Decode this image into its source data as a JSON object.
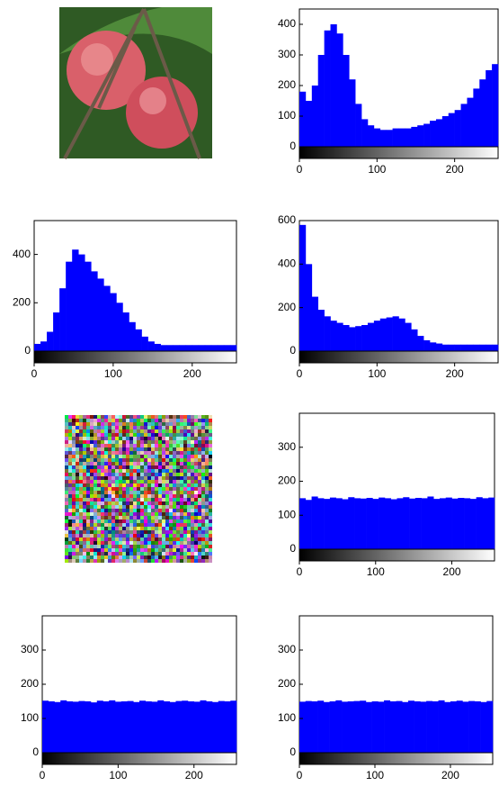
{
  "chart_data": [
    {
      "type": "histogram",
      "color": "#0000ff",
      "bins": [
        0,
        8,
        16,
        24,
        32,
        40,
        48,
        56,
        64,
        72,
        80,
        88,
        96,
        104,
        112,
        120,
        128,
        136,
        144,
        152,
        160,
        168,
        176,
        184,
        192,
        200,
        208,
        216,
        224,
        232,
        240,
        248,
        256
      ],
      "counts": [
        180,
        150,
        200,
        300,
        380,
        400,
        370,
        300,
        220,
        140,
        90,
        70,
        60,
        55,
        55,
        60,
        60,
        60,
        65,
        70,
        75,
        85,
        90,
        100,
        110,
        120,
        140,
        160,
        190,
        220,
        250,
        270
      ],
      "xlim": [
        0,
        256
      ],
      "xticks": [
        0,
        100,
        200
      ],
      "ylim": [
        0,
        450
      ],
      "yticks": [
        0,
        100,
        200,
        300,
        400
      ]
    },
    {
      "type": "histogram",
      "color": "#0000ff",
      "bins": [
        0,
        8,
        16,
        24,
        32,
        40,
        48,
        56,
        64,
        72,
        80,
        88,
        96,
        104,
        112,
        120,
        128,
        136,
        144,
        152,
        160,
        168,
        176,
        184,
        192,
        200,
        208,
        216,
        224,
        232,
        240,
        248,
        256
      ],
      "counts": [
        30,
        40,
        80,
        160,
        260,
        370,
        420,
        400,
        370,
        330,
        300,
        270,
        240,
        200,
        160,
        120,
        90,
        60,
        40,
        30,
        25,
        25,
        25,
        25,
        25,
        25,
        25,
        25,
        25,
        25,
        25,
        25
      ],
      "xlim": [
        0,
        256
      ],
      "xticks": [
        0,
        100,
        200
      ],
      "ylim": [
        0,
        540
      ],
      "yticks": [
        0,
        200,
        400
      ]
    },
    {
      "type": "histogram",
      "color": "#0000ff",
      "bins": [
        0,
        8,
        16,
        24,
        32,
        40,
        48,
        56,
        64,
        72,
        80,
        88,
        96,
        104,
        112,
        120,
        128,
        136,
        144,
        152,
        160,
        168,
        176,
        184,
        192,
        200,
        208,
        216,
        224,
        232,
        240,
        248,
        256
      ],
      "counts": [
        580,
        400,
        250,
        190,
        160,
        140,
        130,
        120,
        110,
        115,
        120,
        130,
        140,
        150,
        155,
        160,
        150,
        130,
        100,
        70,
        50,
        40,
        35,
        30,
        30,
        30,
        30,
        30,
        30,
        30,
        30,
        30
      ],
      "xlim": [
        0,
        256
      ],
      "xticks": [
        0,
        100,
        200
      ],
      "ylim": [
        0,
        600
      ],
      "yticks": [
        0,
        200,
        400,
        600
      ]
    },
    {
      "type": "histogram",
      "color": "#0000ff",
      "bins": [
        0,
        8,
        16,
        24,
        32,
        40,
        48,
        56,
        64,
        72,
        80,
        88,
        96,
        104,
        112,
        120,
        128,
        136,
        144,
        152,
        160,
        168,
        176,
        184,
        192,
        200,
        208,
        216,
        224,
        232,
        240,
        248,
        256
      ],
      "counts": [
        150,
        145,
        155,
        150,
        148,
        152,
        150,
        147,
        153,
        150,
        149,
        151,
        148,
        152,
        150,
        147,
        150,
        153,
        149,
        151,
        150,
        155,
        148,
        150,
        152,
        149,
        151,
        150,
        148,
        153,
        150,
        152
      ],
      "xlim": [
        0,
        256
      ],
      "xticks": [
        0,
        100,
        200
      ],
      "ylim": [
        0,
        400
      ],
      "yticks": [
        0,
        100,
        200,
        300
      ]
    },
    {
      "type": "histogram",
      "color": "#0000ff",
      "bins": [
        0,
        8,
        16,
        24,
        32,
        40,
        48,
        56,
        64,
        72,
        80,
        88,
        96,
        104,
        112,
        120,
        128,
        136,
        144,
        152,
        160,
        168,
        176,
        184,
        192,
        200,
        208,
        216,
        224,
        232,
        240,
        248,
        256
      ],
      "counts": [
        152,
        150,
        148,
        153,
        150,
        149,
        151,
        150,
        147,
        152,
        150,
        153,
        149,
        150,
        151,
        148,
        152,
        150,
        149,
        153,
        150,
        148,
        151,
        152,
        150,
        149,
        153,
        150,
        148,
        151,
        150,
        152
      ],
      "xlim": [
        0,
        256
      ],
      "xticks": [
        0,
        100,
        200
      ],
      "ylim": [
        0,
        400
      ],
      "yticks": [
        0,
        100,
        200,
        300
      ]
    },
    {
      "type": "histogram",
      "color": "#0000ff",
      "bins": [
        0,
        8,
        16,
        24,
        32,
        40,
        48,
        56,
        64,
        72,
        80,
        88,
        96,
        104,
        112,
        120,
        128,
        136,
        144,
        152,
        160,
        168,
        176,
        184,
        192,
        200,
        208,
        216,
        224,
        232,
        240,
        248,
        256
      ],
      "counts": [
        149,
        151,
        150,
        152,
        148,
        150,
        153,
        149,
        150,
        151,
        152,
        148,
        150,
        149,
        153,
        150,
        151,
        148,
        152,
        150,
        149,
        151,
        150,
        153,
        148,
        150,
        152,
        149,
        151,
        150,
        148,
        151
      ],
      "xlim": [
        0,
        256
      ],
      "xticks": [
        0,
        100,
        200
      ],
      "ylim": [
        0,
        400
      ],
      "yticks": [
        0,
        100,
        200,
        300
      ]
    }
  ]
}
